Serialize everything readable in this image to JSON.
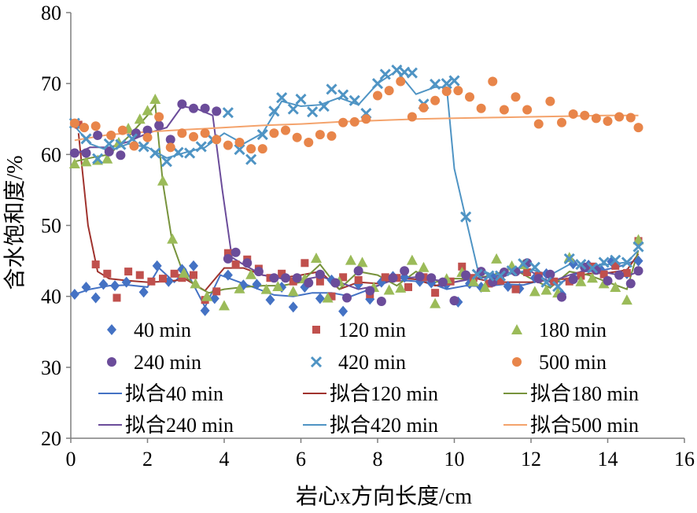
{
  "chart_data": {
    "type": "scatter",
    "xlabel": "岩心x方向长度/cm",
    "ylabel": "含水饱和度/%",
    "xlim": [
      0,
      16
    ],
    "ylim": [
      20,
      80
    ],
    "xticks": [
      0,
      2,
      4,
      6,
      8,
      10,
      12,
      14,
      16
    ],
    "yticks": [
      20,
      30,
      40,
      50,
      60,
      70,
      80
    ],
    "grid": false,
    "legend_position": "bottom-inside",
    "series": [
      {
        "name": "40 min",
        "kind": "points",
        "marker": "diamond",
        "color": "#4472C4",
        "x": [
          0.1,
          0.4,
          0.65,
          0.85,
          1.15,
          1.45,
          1.9,
          2.25,
          2.55,
          2.9,
          3.2,
          3.5,
          3.75,
          4.1,
          4.5,
          4.85,
          5.2,
          5.5,
          5.8,
          6.1,
          6.5,
          6.8,
          7.1,
          7.5,
          7.8,
          8.1,
          8.4,
          8.7,
          9.1,
          9.4,
          9.8,
          10.1,
          10.4,
          10.7,
          11.0,
          11.4,
          11.7,
          12.1,
          12.4,
          12.8,
          13.1,
          13.5,
          13.8,
          14.1,
          14.5,
          14.8
        ],
        "y": [
          40.3,
          41.3,
          39.8,
          41.7,
          41.5,
          42.0,
          40.6,
          44.3,
          42.1,
          43.8,
          44.3,
          38.0,
          39.7,
          43.0,
          41.6,
          41.7,
          39.5,
          41.3,
          38.5,
          41.3,
          39.7,
          42.3,
          37.9,
          41.7,
          39.6,
          42.0,
          42.8,
          42.7,
          42.1,
          41.9,
          41.7,
          39.2,
          41.8,
          41.3,
          42.7,
          41.4,
          41.1,
          42.6,
          43.2,
          40.3,
          44.6,
          44.4,
          43.9,
          44.9,
          43.2,
          45.0
        ]
      },
      {
        "name": "120 min",
        "kind": "points",
        "marker": "square",
        "color": "#C0504D",
        "x": [
          0.2,
          0.65,
          0.95,
          1.2,
          1.5,
          1.8,
          2.1,
          2.4,
          2.7,
          2.9,
          3.2,
          3.5,
          3.8,
          4.1,
          4.3,
          4.6,
          4.9,
          5.2,
          5.5,
          5.8,
          6.1,
          6.5,
          6.8,
          7.1,
          7.5,
          7.8,
          8.2,
          8.5,
          8.8,
          9.2,
          9.5,
          9.9,
          10.2,
          10.5,
          10.9,
          11.2,
          11.6,
          11.9,
          12.2,
          12.6,
          13.0,
          13.3,
          13.6,
          13.9,
          14.2,
          14.5,
          14.8
        ],
        "y": [
          64.2,
          44.5,
          43.2,
          39.8,
          43.5,
          43.0,
          42.1,
          42.5,
          43.2,
          42.6,
          43.0,
          39.5,
          40.7,
          46.1,
          44.5,
          45.2,
          43.9,
          42.6,
          43.2,
          42.1,
          44.7,
          42.1,
          40.0,
          42.7,
          42.3,
          40.3,
          42.7,
          42.6,
          41.3,
          42.7,
          40.5,
          42.1,
          44.2,
          42.6,
          41.8,
          42.2,
          41.0,
          43.4,
          42.9,
          42.1,
          42.1,
          42.9,
          44.2,
          43.1,
          44.3,
          43.3,
          47.8
        ]
      },
      {
        "name": "180 min",
        "kind": "points",
        "marker": "triangle",
        "color": "#9BBB59",
        "x": [
          0.1,
          0.4,
          0.7,
          0.95,
          1.25,
          1.5,
          1.8,
          2.0,
          2.2,
          2.4,
          2.65,
          2.95,
          3.25,
          3.55,
          4.0,
          4.4,
          4.7,
          5.1,
          5.4,
          5.8,
          6.1,
          6.4,
          6.7,
          7.0,
          7.3,
          7.6,
          7.9,
          8.3,
          8.6,
          8.9,
          9.2,
          9.5,
          9.8,
          10.2,
          10.5,
          10.8,
          11.1,
          11.5,
          11.8,
          12.1,
          12.4,
          12.7,
          13.0,
          13.3,
          13.6,
          13.9,
          14.2,
          14.5,
          14.8
        ],
        "y": [
          58.7,
          59.0,
          59.2,
          59.4,
          61.7,
          63.7,
          65.0,
          66.2,
          67.8,
          56.3,
          48.1,
          43.3,
          41.8,
          40.0,
          38.7,
          41.1,
          43.1,
          41.0,
          41.4,
          40.7,
          42.5,
          45.4,
          39.8,
          42.1,
          45.1,
          44.8,
          41.3,
          40.9,
          41.2,
          45.1,
          44.1,
          39.0,
          42.5,
          43.4,
          42.1,
          41.3,
          45.3,
          44.3,
          44.5,
          40.7,
          40.9,
          40.5,
          45.5,
          42.1,
          42.6,
          41.8,
          41.3,
          39.5,
          48.0
        ]
      },
      {
        "name": "240 min",
        "kind": "points",
        "marker": "circle",
        "color": "#6B4C9A",
        "x": [
          0.1,
          0.4,
          0.7,
          1.0,
          1.3,
          1.7,
          2.0,
          2.3,
          2.6,
          2.9,
          3.2,
          3.5,
          3.8,
          4.1,
          4.3,
          4.6,
          4.9,
          5.3,
          5.6,
          5.9,
          6.2,
          6.5,
          6.9,
          7.2,
          7.5,
          7.8,
          8.1,
          8.4,
          8.7,
          9.1,
          9.4,
          9.7,
          10.0,
          10.3,
          10.7,
          11.0,
          11.3,
          11.6,
          11.9,
          12.2,
          12.5,
          12.8,
          13.1,
          13.4,
          13.7,
          14.0,
          14.3,
          14.6,
          14.8
        ],
        "y": [
          60.2,
          60.2,
          62.7,
          60.4,
          59.9,
          63.0,
          63.4,
          64.1,
          62.1,
          67.1,
          66.5,
          66.5,
          66.1,
          45.3,
          46.2,
          44.7,
          43.5,
          42.6,
          42.6,
          42.6,
          41.9,
          43.1,
          41.9,
          39.8,
          43.6,
          40.8,
          39.3,
          42.6,
          43.6,
          42.8,
          42.6,
          42.0,
          39.4,
          43.0,
          43.5,
          42.0,
          43.4,
          43.5,
          44.7,
          42.5,
          43.1,
          39.9,
          42.4,
          44.1,
          43.7,
          42.2,
          43.0,
          41.8,
          43.6
        ]
      },
      {
        "name": "420 min",
        "kind": "points",
        "marker": "x",
        "color": "#4F94C4",
        "x": [
          0.1,
          0.4,
          0.7,
          1.0,
          1.3,
          1.6,
          1.9,
          2.2,
          2.5,
          2.8,
          3.1,
          3.4,
          3.7,
          4.1,
          4.4,
          4.7,
          5.0,
          5.3,
          5.5,
          5.8,
          6.0,
          6.3,
          6.6,
          6.8,
          7.1,
          7.4,
          7.7,
          8.0,
          8.2,
          8.5,
          8.7,
          8.9,
          9.2,
          9.5,
          9.8,
          10.0,
          10.3,
          10.6,
          10.9,
          11.2,
          11.5,
          11.8,
          12.1,
          12.4,
          12.7,
          13.0,
          13.3,
          13.6,
          13.9,
          14.2,
          14.5,
          14.8
        ],
        "y": [
          64.4,
          62.2,
          59.4,
          61.5,
          61.4,
          62.2,
          61.1,
          60.2,
          59.0,
          60.3,
          60.2,
          61.1,
          62.1,
          65.9,
          60.7,
          59.3,
          62.8,
          66.1,
          68.0,
          66.4,
          67.8,
          66.0,
          66.8,
          69.2,
          68.4,
          67.6,
          65.8,
          70.0,
          71.3,
          71.9,
          71.6,
          71.5,
          67.1,
          69.9,
          70.0,
          70.4,
          51.2,
          43.1,
          42.9,
          42.9,
          43.6,
          44.6,
          44.1,
          42.0,
          41.4,
          45.3,
          44.5,
          44.0,
          44.8,
          45.1,
          44.8,
          47.0
        ]
      },
      {
        "name": "500 min",
        "kind": "points",
        "marker": "circle",
        "color": "#E8854A",
        "x": [
          0.1,
          0.35,
          0.65,
          1.05,
          1.35,
          1.65,
          2.0,
          2.3,
          2.6,
          2.9,
          3.2,
          3.5,
          3.8,
          4.1,
          4.4,
          4.7,
          5.0,
          5.3,
          5.6,
          5.9,
          6.2,
          6.5,
          6.8,
          7.1,
          7.4,
          7.7,
          8.0,
          8.3,
          8.6,
          8.9,
          9.2,
          9.5,
          9.8,
          10.1,
          10.4,
          10.7,
          11.0,
          11.3,
          11.6,
          11.9,
          12.2,
          12.5,
          12.8,
          13.1,
          13.4,
          13.7,
          14.0,
          14.3,
          14.6,
          14.8
        ],
        "y": [
          64.4,
          63.8,
          64.0,
          62.7,
          63.4,
          61.2,
          62.4,
          65.3,
          61.0,
          63.0,
          62.5,
          63.0,
          62.1,
          61.3,
          61.7,
          60.8,
          60.8,
          63.0,
          63.4,
          62.4,
          61.7,
          62.8,
          62.6,
          64.5,
          64.6,
          65.0,
          68.3,
          69.0,
          70.3,
          65.3,
          66.6,
          67.6,
          68.9,
          69.0,
          68.1,
          66.5,
          70.3,
          66.3,
          68.1,
          66.3,
          64.3,
          67.5,
          64.5,
          65.7,
          65.5,
          65.1,
          64.7,
          65.3,
          65.2,
          63.8
        ]
      },
      {
        "name": "拟合40 min",
        "kind": "line",
        "color": "#4472C4",
        "x": [
          0.1,
          0.5,
          1.0,
          1.5,
          2.0,
          2.3,
          2.7,
          3.0,
          3.5,
          3.9,
          4.3,
          4.8,
          5.3,
          5.8,
          6.3,
          6.8,
          7.3,
          7.8,
          8.3,
          8.8,
          9.3,
          9.8,
          10.3,
          10.8,
          11.3,
          11.8,
          12.3,
          12.8,
          13.3,
          13.8,
          14.3,
          14.8
        ],
        "y": [
          40.3,
          41.0,
          41.5,
          41.6,
          41.3,
          44.0,
          42.0,
          43.7,
          38.5,
          43.0,
          42.2,
          41.2,
          40.2,
          40.0,
          40.5,
          40.5,
          40.0,
          41.0,
          42.2,
          42.2,
          42.0,
          41.0,
          41.5,
          41.4,
          41.7,
          41.6,
          42.3,
          42.0,
          43.5,
          43.6,
          44.2,
          45.2
        ]
      },
      {
        "name": "拟合120 min",
        "kind": "line",
        "color": "#A0332E",
        "x": [
          0.2,
          0.45,
          0.7,
          1.0,
          1.5,
          2.0,
          2.5,
          3.0,
          3.5,
          4.0,
          4.5,
          5.0,
          5.5,
          6.0,
          6.5,
          7.0,
          7.5,
          8.0,
          8.5,
          9.0,
          9.5,
          10.0,
          10.5,
          11.0,
          11.5,
          12.0,
          12.5,
          13.0,
          13.5,
          14.0,
          14.5,
          14.8
        ],
        "y": [
          63.0,
          50.0,
          43.5,
          42.5,
          42.2,
          42.0,
          42.1,
          42.4,
          40.8,
          44.0,
          44.0,
          43.0,
          42.6,
          43.0,
          43.5,
          41.0,
          42.0,
          41.8,
          42.6,
          42.4,
          41.5,
          42.0,
          42.6,
          42.0,
          42.0,
          42.0,
          42.3,
          42.5,
          43.2,
          43.3,
          43.7,
          46.0
        ]
      },
      {
        "name": "拟合180 min",
        "kind": "line",
        "color": "#77933C",
        "x": [
          0.1,
          0.5,
          1.0,
          1.5,
          2.0,
          2.2,
          2.4,
          2.65,
          2.95,
          3.25,
          3.6,
          4.0,
          4.5,
          5.0,
          5.5,
          6.0,
          6.5,
          7.0,
          7.5,
          8.0,
          8.5,
          9.0,
          9.5,
          10.0,
          10.5,
          11.0,
          11.5,
          12.0,
          12.5,
          13.0,
          13.5,
          14.0,
          14.5,
          14.8
        ],
        "y": [
          59.0,
          59.5,
          60.0,
          62.5,
          65.5,
          67.0,
          56.0,
          47.5,
          43.0,
          41.5,
          40.5,
          41.0,
          41.3,
          41.5,
          41.5,
          42.0,
          44.5,
          41.0,
          43.5,
          43.0,
          41.5,
          43.5,
          42.0,
          42.5,
          42.5,
          43.0,
          44.0,
          42.5,
          41.2,
          43.5,
          43.0,
          42.0,
          41.0,
          46.5
        ]
      },
      {
        "name": "拟合240 min",
        "kind": "line",
        "color": "#6B4C9A",
        "x": [
          0.1,
          0.5,
          1.0,
          1.5,
          2.0,
          2.5,
          2.9,
          3.3,
          3.7,
          3.95,
          4.2,
          4.5,
          5.0,
          5.5,
          6.0,
          6.5,
          7.0,
          7.5,
          8.0,
          8.5,
          9.0,
          9.5,
          10.0,
          10.5,
          11.0,
          11.5,
          12.0,
          12.5,
          13.0,
          13.5,
          14.0,
          14.5,
          14.8
        ],
        "y": [
          60.0,
          61.0,
          61.0,
          61.8,
          63.0,
          63.8,
          66.8,
          66.4,
          65.5,
          55.0,
          45.5,
          44.5,
          43.0,
          42.5,
          42.3,
          42.8,
          42.0,
          41.0,
          41.5,
          42.5,
          42.7,
          42.3,
          42.0,
          42.5,
          42.8,
          43.2,
          43.5,
          42.0,
          43.0,
          43.8,
          43.3,
          42.8,
          43.5
        ]
      },
      {
        "name": "拟合420 min",
        "kind": "line",
        "color": "#4F94C4",
        "x": [
          0.1,
          0.5,
          1.0,
          1.5,
          2.0,
          2.5,
          3.0,
          3.5,
          4.0,
          4.5,
          5.0,
          5.5,
          6.0,
          6.5,
          7.0,
          7.5,
          8.0,
          8.5,
          9.0,
          9.5,
          9.8,
          10.0,
          10.3,
          10.6,
          11.0,
          11.5,
          12.0,
          12.5,
          13.0,
          13.5,
          14.0,
          14.5,
          14.8
        ],
        "y": [
          64.0,
          61.5,
          60.5,
          61.5,
          61.0,
          59.5,
          60.3,
          61.0,
          63.0,
          61.5,
          63.0,
          67.5,
          66.8,
          67.0,
          68.0,
          67.0,
          70.0,
          71.8,
          68.5,
          69.5,
          69.5,
          58.0,
          51.0,
          44.0,
          43.0,
          43.2,
          43.8,
          43.0,
          44.5,
          44.3,
          44.5,
          44.8,
          46.5
        ]
      },
      {
        "name": "拟合500 min",
        "kind": "line",
        "color": "#F4A36C",
        "x": [
          0.1,
          1.0,
          2.0,
          3.0,
          4.0,
          5.0,
          6.0,
          7.0,
          8.0,
          9.0,
          10.0,
          11.0,
          12.0,
          13.0,
          14.0,
          14.8
        ],
        "y": [
          62.0,
          62.8,
          63.2,
          63.5,
          63.8,
          64.1,
          64.3,
          64.6,
          64.8,
          65.0,
          65.1,
          65.2,
          65.3,
          65.4,
          65.5,
          65.5
        ]
      }
    ]
  }
}
